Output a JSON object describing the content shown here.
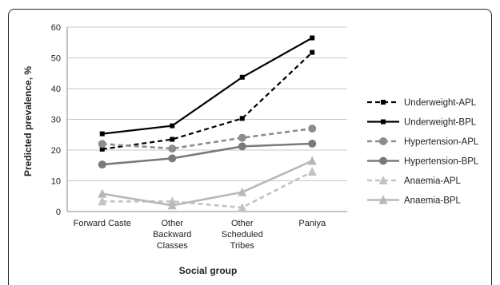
{
  "chart_data": {
    "type": "line",
    "categories": [
      [
        "Forward Caste"
      ],
      [
        "Other",
        "Backward",
        "Classes"
      ],
      [
        "Other",
        "Scheduled",
        "Tribes"
      ],
      [
        "Paniya"
      ]
    ],
    "xlabel": "Social group",
    "ylabel": "Predicted prevalence, %",
    "ylim": [
      0,
      60
    ],
    "yticks": [
      0,
      10,
      20,
      30,
      40,
      50,
      60
    ],
    "grid": true,
    "legend_position": "right",
    "series": [
      {
        "name": "Underweight-APL",
        "values": [
          20.3,
          23.5,
          30.3,
          51.8
        ],
        "color": "#000000",
        "dash": "dashed",
        "marker": "square"
      },
      {
        "name": "Underweight-BPL",
        "values": [
          25.3,
          27.9,
          43.7,
          56.5
        ],
        "color": "#000000",
        "dash": "solid",
        "marker": "square"
      },
      {
        "name": "Hypertension-APL",
        "values": [
          22.0,
          20.5,
          24.0,
          27.0
        ],
        "color": "#8c8c8c",
        "dash": "dashed",
        "marker": "circle"
      },
      {
        "name": "Hypertension-BPL",
        "values": [
          15.3,
          17.3,
          21.2,
          22.1
        ],
        "color": "#7a7a7a",
        "dash": "solid",
        "marker": "circle"
      },
      {
        "name": "Anaemia-APL",
        "values": [
          3.3,
          3.3,
          1.3,
          13.0
        ],
        "color": "#c3c3c3",
        "dash": "dashed",
        "marker": "triangle"
      },
      {
        "name": "Anaemia-BPL",
        "values": [
          5.8,
          2.0,
          6.3,
          16.5
        ],
        "color": "#b8b8b8",
        "dash": "solid",
        "marker": "triangle"
      }
    ]
  }
}
